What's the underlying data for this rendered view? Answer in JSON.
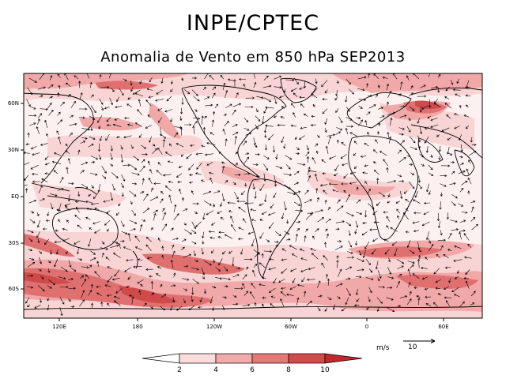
{
  "header": {
    "title": "INPE/CPTEC",
    "subtitle": "Anomalia de Vento em 850 hPa SEP2013"
  },
  "axes": {
    "lat_labels": [
      "60N",
      "30N",
      "EQ",
      "30S",
      "60S"
    ],
    "lon_labels": [
      "120E",
      "180",
      "120W",
      "60W",
      "0",
      "60E"
    ]
  },
  "colorbar": {
    "levels": [
      "2",
      "4",
      "6",
      "8",
      "10"
    ],
    "colors": [
      "#ffffff",
      "#fbdcdc",
      "#f3aaaa",
      "#e67878",
      "#d44a4a",
      "#c12a2a"
    ]
  },
  "reference_vector": {
    "unit": "m/s",
    "value": "10"
  },
  "map_style": {
    "background": "#fdf0f0",
    "coastline_color": "#000000",
    "arrow_color": "#000000"
  }
}
